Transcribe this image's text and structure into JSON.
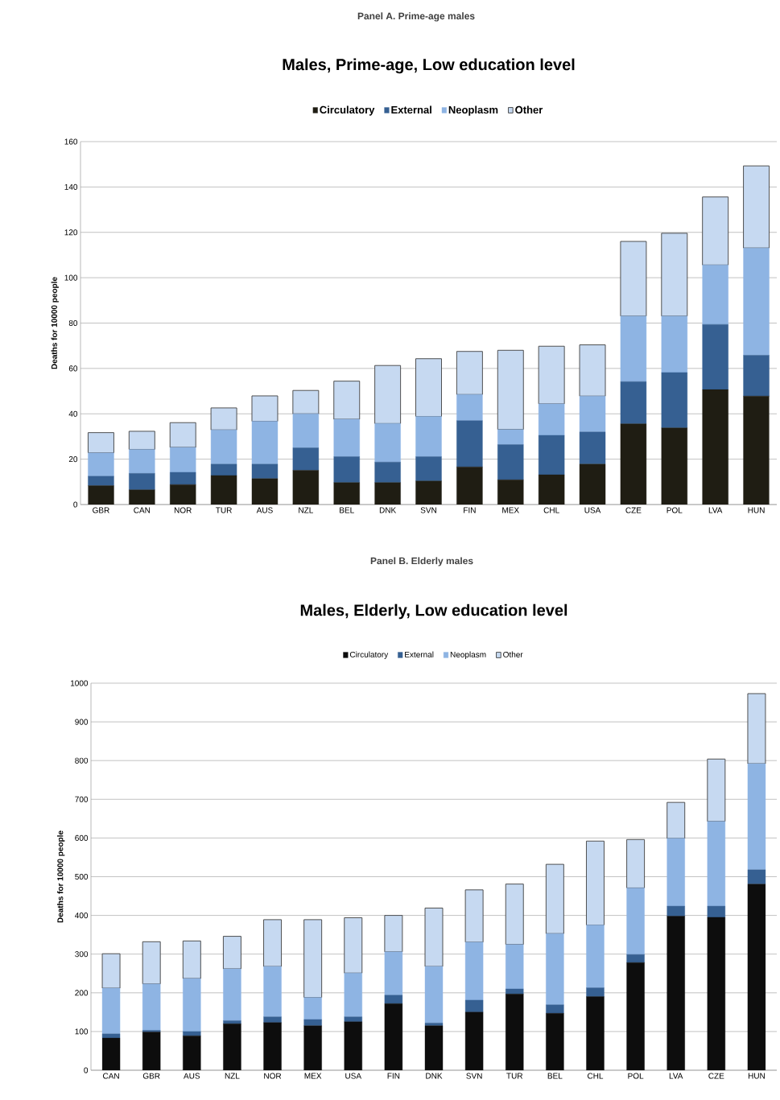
{
  "chart_data": [
    {
      "type": "bar",
      "title": "Males, Prime-age, Low education level",
      "ylabel": "Deaths for 10000 people",
      "annotations": [
        "Panel A. Prime-age males"
      ],
      "categories": [
        "GBR",
        "CAN",
        "NOR",
        "TUR",
        "AUS",
        "NZL",
        "BEL",
        "DNK",
        "SVN",
        "FIN",
        "MEX",
        "CHL",
        "USA",
        "CZE",
        "POL",
        "LVA",
        "HUN"
      ],
      "stacked": true,
      "series": [
        {
          "name": "Circulatory",
          "color": "#1f1d13",
          "values": [
            8.3,
            6.5,
            8.8,
            12.8,
            11.4,
            15.1,
            9.7,
            9.7,
            10.4,
            16.6,
            10.9,
            13.1,
            17.8,
            35.6,
            33.8,
            50.7,
            47.8
          ]
        },
        {
          "name": "External",
          "color": "#366092",
          "values": [
            4.2,
            7.2,
            5.4,
            5.0,
            6.4,
            9.9,
            11.4,
            9.0,
            10.7,
            20.4,
            15.5,
            17.4,
            14.2,
            18.6,
            24.4,
            28.7,
            18.0
          ]
        },
        {
          "name": "Neoplasm",
          "color": "#8eb4e3",
          "values": [
            10.3,
            10.6,
            11.0,
            15.1,
            18.9,
            15.0,
            16.5,
            17.0,
            17.7,
            11.5,
            6.7,
            13.9,
            15.8,
            28.9,
            24.9,
            26.2,
            47.3
          ]
        },
        {
          "name": "Other",
          "color": "#c6d9f1",
          "values": [
            8.9,
            8.0,
            10.9,
            9.7,
            11.2,
            10.3,
            16.8,
            25.6,
            25.5,
            19.0,
            34.9,
            25.4,
            22.6,
            32.9,
            36.5,
            30.0,
            36.2
          ]
        }
      ],
      "ylim": [
        0,
        160
      ],
      "yticks": [
        0,
        20,
        40,
        60,
        80,
        100,
        120,
        140,
        160
      ],
      "grid": "y",
      "legend": "top"
    },
    {
      "type": "bar",
      "title": "Males, Elderly, Low education level",
      "ylabel": "Deaths for 10000 people",
      "annotations": [
        "Panel B. Elderly males"
      ],
      "categories": [
        "CAN",
        "GBR",
        "AUS",
        "NZL",
        "NOR",
        "MEX",
        "USA",
        "FIN",
        "DNK",
        "SVN",
        "TUR",
        "BEL",
        "CHL",
        "POL",
        "LVA",
        "CZE",
        "HUN"
      ],
      "stacked": true,
      "series": [
        {
          "name": "Circulatory",
          "color": "#0d0d0d",
          "values": [
            83,
            99,
            89,
            120,
            123,
            115,
            125,
            172,
            115,
            150,
            197,
            147,
            190,
            278,
            398,
            395,
            481
          ]
        },
        {
          "name": "External",
          "color": "#366092",
          "values": [
            11,
            4,
            11,
            8,
            15,
            16,
            13,
            22,
            7,
            31,
            13,
            22,
            23,
            21,
            26,
            29,
            37
          ]
        },
        {
          "name": "Neoplasm",
          "color": "#8eb4e3",
          "values": [
            118,
            120,
            137,
            134,
            130,
            57,
            113,
            112,
            146,
            150,
            115,
            184,
            162,
            172,
            175,
            219,
            274
          ]
        },
        {
          "name": "Other",
          "color": "#c6d9f1",
          "values": [
            89,
            109,
            97,
            84,
            121,
            201,
            143,
            94,
            151,
            135,
            156,
            179,
            217,
            125,
            93,
            161,
            181
          ]
        }
      ],
      "ylim": [
        0,
        1000
      ],
      "yticks": [
        0,
        100,
        200,
        300,
        400,
        500,
        600,
        700,
        800,
        900,
        1000
      ],
      "grid": "y",
      "legend": "top"
    }
  ]
}
